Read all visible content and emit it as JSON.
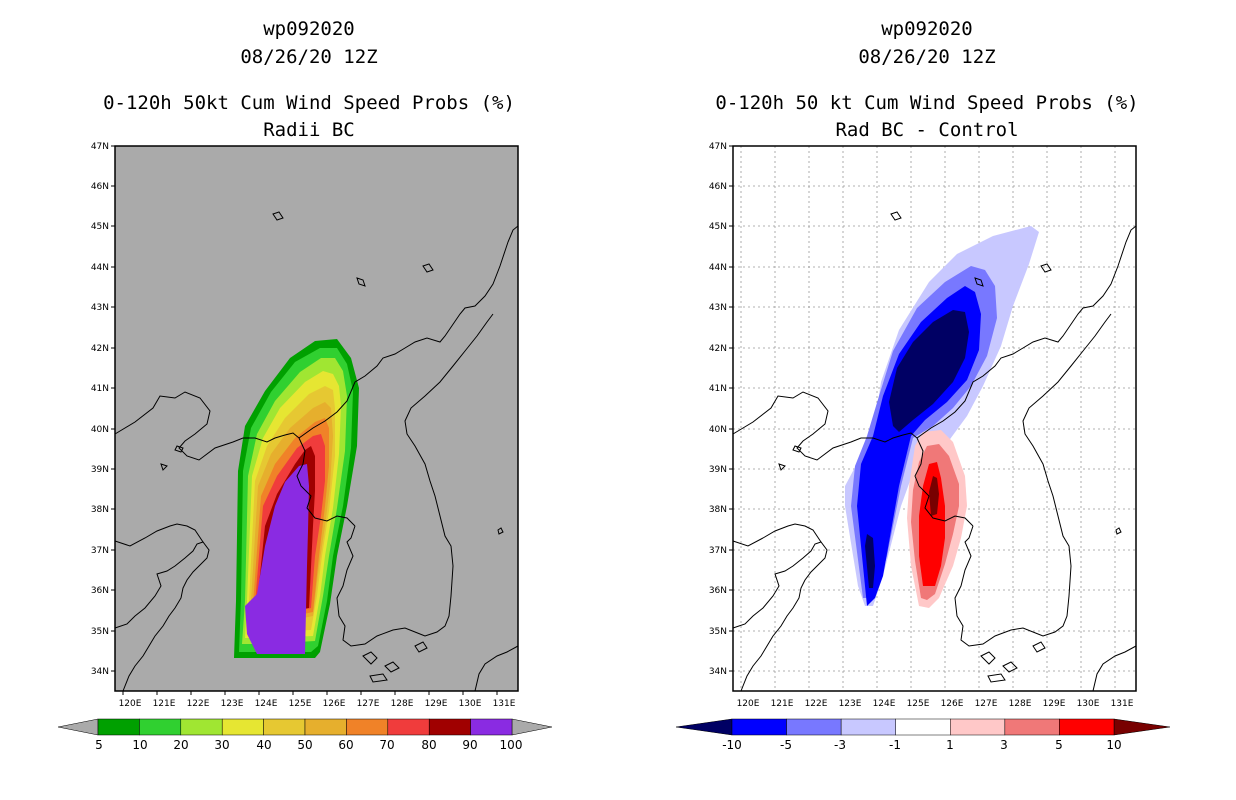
{
  "left": {
    "storm": "wp092020",
    "date": "08/26/20 12Z",
    "title": "0-120h 50kt Cum Wind Speed Probs (%)",
    "subtitle": "Radii BC",
    "background": "#aaaaaa",
    "colorbar": {
      "labels": [
        "5",
        "10",
        "20",
        "30",
        "40",
        "50",
        "60",
        "70",
        "80",
        "90",
        "100"
      ],
      "colors": [
        "#00a000",
        "#30d030",
        "#a0e632",
        "#e6e632",
        "#e6c832",
        "#e6af2d",
        "#f08228",
        "#f03c3c",
        "#a00000",
        "#8a2be2"
      ],
      "under_color": "#aaaaaa",
      "over_color": "#aaaaaa"
    }
  },
  "right": {
    "storm": "wp092020",
    "date": "08/26/20 12Z",
    "title": "0-120h 50 kt Cum Wind Speed Probs (%)",
    "subtitle": "Rad BC - Control",
    "background": "#ffffff",
    "colorbar": {
      "labels": [
        "-10",
        "-5",
        "-3",
        "-1",
        "1",
        "3",
        "5",
        "10"
      ],
      "colors": [
        "#0000ff",
        "#7878ff",
        "#c8c8ff",
        "#ffffff",
        "#ffc8c8",
        "#f07878",
        "#ff0000"
      ],
      "under_color": "#000064",
      "over_color": "#780000"
    }
  },
  "map": {
    "lat_labels": [
      "47N",
      "46N",
      "45N",
      "44N",
      "43N",
      "42N",
      "41N",
      "40N",
      "39N",
      "38N",
      "37N",
      "36N",
      "35N",
      "34N"
    ],
    "lon_labels": [
      "120E",
      "121E",
      "122E",
      "123E",
      "124E",
      "125E",
      "126E",
      "127E",
      "128E",
      "129E",
      "130E",
      "131E"
    ]
  }
}
